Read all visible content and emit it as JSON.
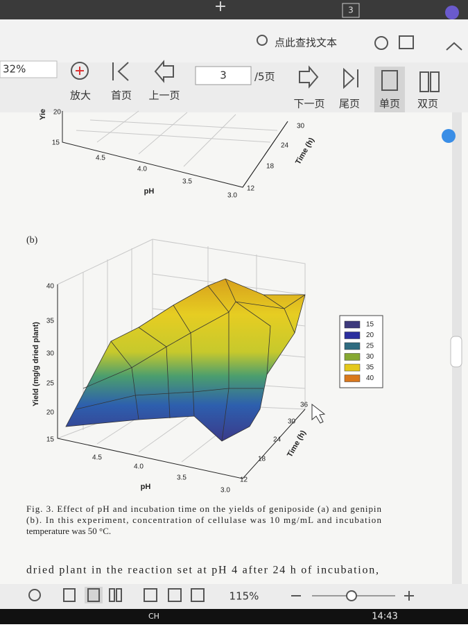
{
  "tab_bar": {
    "tab_count": "3"
  },
  "search": {
    "placeholder": "点此查找文本"
  },
  "toolbar": {
    "zoom": "32%",
    "buttons": [
      "放大",
      "首页",
      "上一页",
      "下一页",
      "尾页",
      "单页",
      "双页"
    ],
    "page_input": "3",
    "page_total": "/5页"
  },
  "figure_a": {
    "z_label": "Yie",
    "z_ticks": [
      "20",
      "15"
    ],
    "ph_ticks": [
      "4.5",
      "4.0",
      "3.5",
      "3.0"
    ],
    "ph_label": "pH",
    "time_ticks": [
      "12",
      "18",
      "24",
      "30"
    ],
    "time_label": "Time (h)"
  },
  "figure_b": {
    "panel": "(b)",
    "z_label": "Yield (mg/g dried plant)",
    "z_ticks": [
      "15",
      "20",
      "25",
      "30",
      "35",
      "40"
    ],
    "ph_ticks": [
      "4.5",
      "4.0",
      "3.5",
      "3.0"
    ],
    "ph_label": "pH",
    "time_ticks": [
      "12",
      "18",
      "24",
      "30",
      "36"
    ],
    "time_label": "Time (h)",
    "legend": [
      {
        "label": "15",
        "color": "#3d3a7c"
      },
      {
        "label": "20",
        "color": "#2b2f9e"
      },
      {
        "label": "25",
        "color": "#2f6b80"
      },
      {
        "label": "30",
        "color": "#86a832"
      },
      {
        "label": "35",
        "color": "#e4c81c"
      },
      {
        "label": "40",
        "color": "#d9781c"
      }
    ]
  },
  "caption": {
    "lines": [
      "Fig. 3.  Effect of pH and incubation time on the yields of geniposide (a) and genipin",
      "(b). In this experiment, concentration of cellulase was 10 mg/mL and incubation",
      "temperature was 50 °C."
    ]
  },
  "body": {
    "lines": [
      "dried plant in the reaction set at pH 4 after 24 h of incubation,"
    ]
  },
  "status_bar": {
    "zoom": "115%"
  },
  "taskbar": {
    "input": "CH",
    "clock": "14:43"
  }
}
